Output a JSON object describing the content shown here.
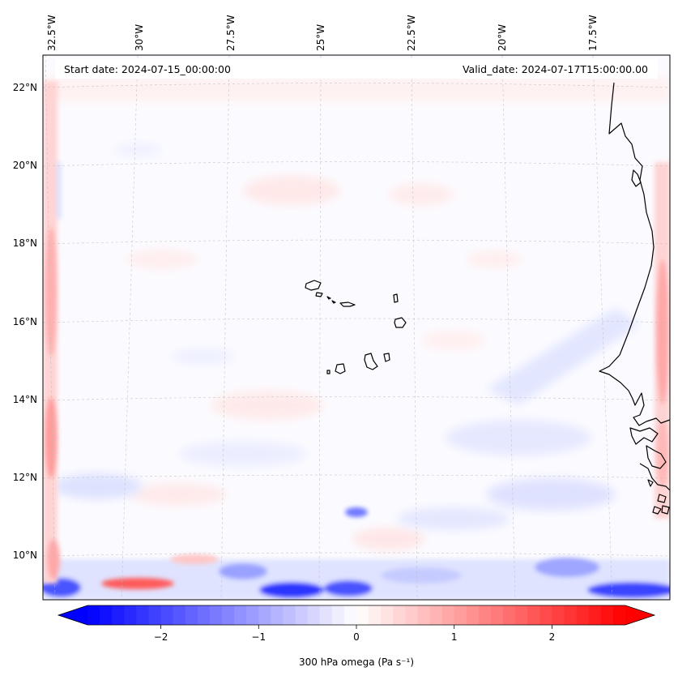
{
  "header": {
    "start_date": "Start date: 2024-07-15_00:00:00",
    "valid_date": "Valid_date: 2024-07-17T15:00:00.00"
  },
  "map": {
    "lon_labels": [
      "32.5°W",
      "30°W",
      "27.5°W",
      "25°W",
      "22.5°W",
      "20°W",
      "17.5°W"
    ],
    "lat_labels": [
      "22°N",
      "20°N",
      "18°N",
      "16°N",
      "14°N",
      "12°N",
      "10°N"
    ],
    "lon_range": [
      -32.7,
      -15.5
    ],
    "lat_range": [
      8.9,
      22.8
    ],
    "gridlines": true,
    "coastline_color": "#000000"
  },
  "colorbar": {
    "label": "300 hPa omega (Pa s⁻¹)",
    "ticks": [
      "−2",
      "−1",
      "0",
      "1",
      "2"
    ],
    "tick_values": [
      -2,
      -1,
      0,
      1,
      2
    ],
    "min": -2.75,
    "max": 2.75,
    "extend": "both",
    "cmap": "bwr",
    "color_low": "#0000ff",
    "color_mid": "#ffffff",
    "color_high": "#ff0000"
  }
}
